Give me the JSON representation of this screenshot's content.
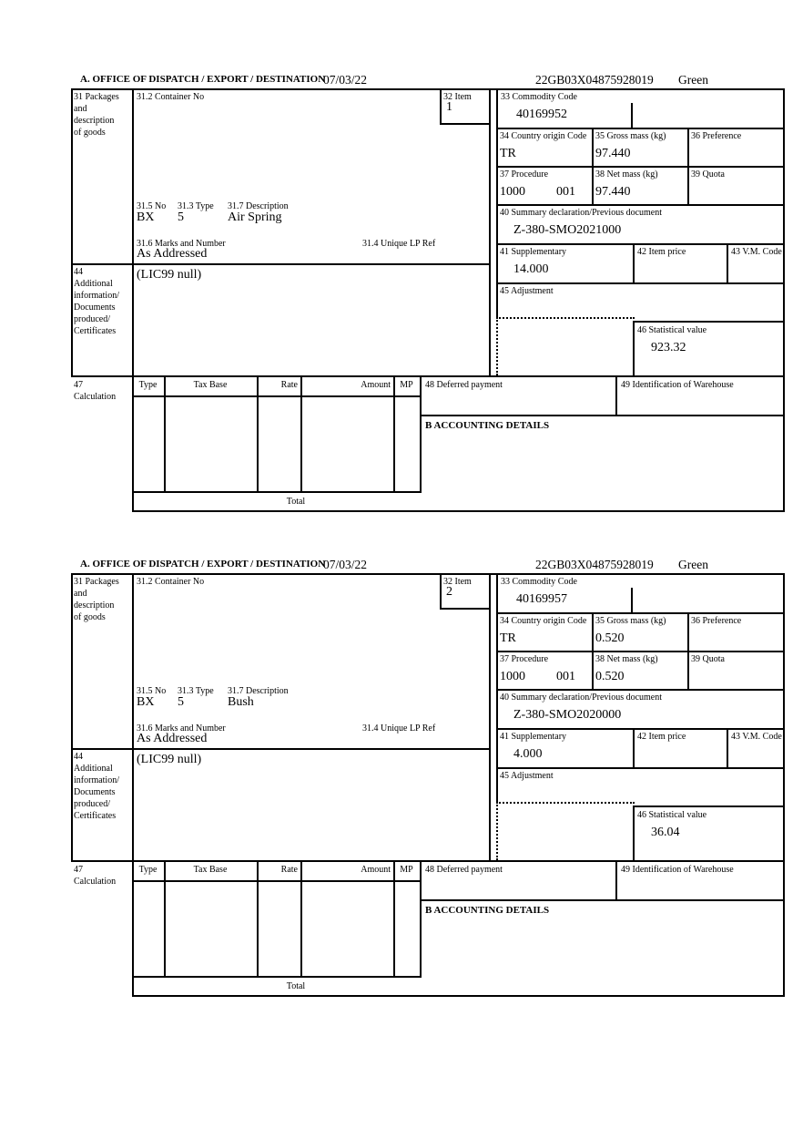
{
  "header": {
    "office_label": "A.  OFFICE OF DISPATCH / EXPORT / DESTINATION",
    "date": "07/03/22",
    "reference": "22GB03X04875928019",
    "status": "Green"
  },
  "labels": {
    "b31": "31 Packages\nand\ndescription\nof goods",
    "b31_2": "31.2 Container No",
    "b32": "32 Item",
    "b33": "33 Commodity Code",
    "b34": "34 Country origin Code",
    "b35": "35 Gross mass (kg)",
    "b36": "36 Preference",
    "b37": "37 Procedure",
    "b38": "38 Net mass (kg)",
    "b39": "39 Quota",
    "b31_5": "31.5 No",
    "b31_3": "31.3 Type",
    "b31_7": "31.7 Description",
    "b31_6": "31.6 Marks and Number",
    "b31_4": "31.4 Unique LP Ref",
    "b40": "40 Summary declaration/Previous document",
    "b41": "41 Supplementary",
    "b42": "42 Item price",
    "b43": "43 V.M. Code",
    "b44": "44\nAdditional\ninformation/\nDocuments\nproduced/\nCertificates",
    "b45": "45 Adjustment",
    "b46": "46 Statistical value",
    "b47": "47\nCalculation",
    "col_type": "Type",
    "col_tax_base": "Tax Base",
    "col_rate": "Rate",
    "col_amount": "Amount",
    "col_mp": "MP",
    "b48": "48 Deferred payment",
    "b49": "49 Identification of Warehouse",
    "b_accounting": "B ACCOUNTING DETAILS",
    "total": "Total"
  },
  "items": [
    {
      "item_no": "1",
      "commodity_code": "40169952",
      "country_origin": "TR",
      "gross_mass": "97.440",
      "procedure": "1000",
      "procedure_qualifier": "001",
      "net_mass": "97.440",
      "package_no": "BX",
      "package_type": "5",
      "description": "Air Spring",
      "marks_and_number": "As Addressed",
      "previous_document": "Z-380-SMO2021000",
      "supplementary": "14.000",
      "statistical_value": "923.32",
      "additional_information": "(LIC99 null)"
    },
    {
      "item_no": "2",
      "commodity_code": "40169957",
      "country_origin": "TR",
      "gross_mass": "0.520",
      "procedure": "1000",
      "procedure_qualifier": "001",
      "net_mass": "0.520",
      "package_no": "BX",
      "package_type": "5",
      "description": "Bush",
      "marks_and_number": "As Addressed",
      "previous_document": "Z-380-SMO2020000",
      "supplementary": "4.000",
      "statistical_value": "36.04",
      "additional_information": "(LIC99 null)"
    }
  ]
}
